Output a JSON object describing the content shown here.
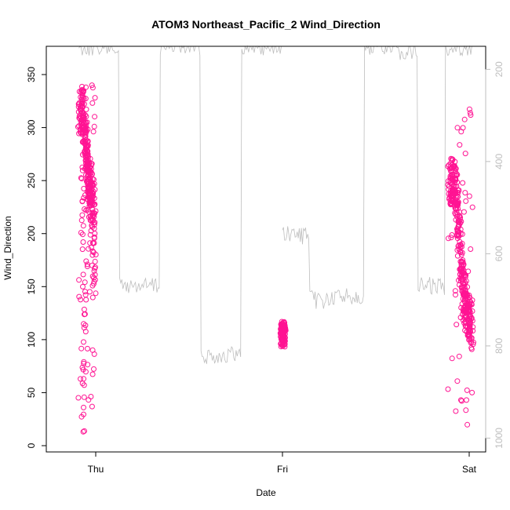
{
  "chart_data": {
    "type": "scatter",
    "title": "ATOM3 Northeast_Pacific_2 Wind_Direction",
    "xlabel": "Date",
    "ylabel": "Wind_Direction",
    "x_ticks": [
      "Thu",
      "Fri",
      "Sat"
    ],
    "x_range_days": [
      "Wed 21:00",
      "Sat 00:30"
    ],
    "ylim": [
      0,
      370
    ],
    "y_ticks": [
      "0",
      "50",
      "100",
      "150",
      "200",
      "250",
      "300",
      "350"
    ],
    "right_axis": {
      "ylim_top_to_bottom": [
        150,
        1030
      ],
      "ticks": [
        "200",
        "400",
        "600",
        "800",
        "1000"
      ],
      "reversed": true
    },
    "grid": false,
    "legend": "none",
    "colors": {
      "points": "#ff1493",
      "line": "#bebebe",
      "axis": "#000000",
      "right_axis": "#bebebe"
    },
    "segments_note": "three sampling periods",
    "series": [
      {
        "kind": "wind_direction_points",
        "segments": [
          {
            "x_start": "Wed 22:00",
            "x_end": "Wed 23:50",
            "y_trend": [
              [
                0.0,
                315
              ],
              [
                0.2,
                315
              ],
              [
                0.25,
                40
              ],
              [
                0.3,
                300
              ],
              [
                0.45,
                275
              ],
              [
                0.55,
                260
              ],
              [
                0.7,
                240
              ],
              [
                0.85,
                225
              ],
              [
                0.92,
                210
              ],
              [
                1.0,
                150
              ]
            ]
          },
          {
            "x_start": "Fri 00:00",
            "x_end": "Fri 00:10",
            "y_trend": [
              [
                0.0,
                105
              ],
              [
                1.0,
                105
              ]
            ]
          },
          {
            "x_start": "Fri 21:30",
            "x_end": "Sat 00:20",
            "y_trend": [
              [
                0.0,
                245
              ],
              [
                0.15,
                250
              ],
              [
                0.3,
                235
              ],
              [
                0.42,
                200
              ],
              [
                0.5,
                175
              ],
              [
                0.6,
                150
              ],
              [
                0.7,
                140
              ],
              [
                0.8,
                125
              ],
              [
                0.9,
                120
              ],
              [
                1.0,
                110
              ]
            ]
          }
        ]
      },
      {
        "kind": "pressure_line",
        "axis": "right",
        "segments": [
          {
            "x_start": "Wed 21:50",
            "x_end": "Fri 00:00",
            "y_levels": [
              150,
              670,
              150,
              820,
              150
            ]
          },
          {
            "x_start": "Fri 00:00",
            "x_end": "Sat 00:20",
            "y_levels": [
              560,
              700,
              690,
              150,
              160,
              670,
              150
            ]
          }
        ]
      }
    ]
  }
}
